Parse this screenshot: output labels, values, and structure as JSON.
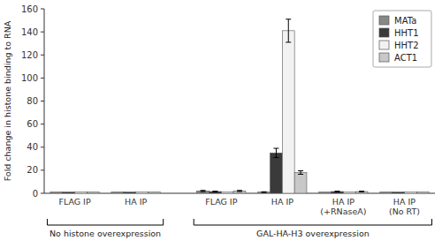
{
  "chart_data": {
    "type": "bar",
    "y_label": "Fold change in histone binding to RNA",
    "categories": [
      "FLAG IP",
      "HA IP",
      "FLAG IP",
      "HA IP",
      "HA IP\n(+RNaseA)",
      "HA IP\n(No RT)"
    ],
    "series": [
      {
        "name": "MATa",
        "color": "#888888",
        "values": [
          1,
          1,
          2,
          1,
          1,
          1
        ],
        "errors": [
          0,
          0,
          0.5,
          0.3,
          0,
          0
        ]
      },
      {
        "name": "HHT1",
        "color": "#3a3a3a",
        "values": [
          1,
          1,
          1.5,
          35,
          1.5,
          1
        ],
        "errors": [
          0,
          0,
          0.3,
          4,
          0.3,
          0
        ]
      },
      {
        "name": "HHT2",
        "color": "#f2f2f2",
        "values": [
          1,
          1,
          1,
          141,
          1,
          1
        ],
        "errors": [
          0,
          0,
          0,
          10,
          0,
          0
        ]
      },
      {
        "name": "ACT1",
        "color": "#c8c8c8",
        "values": [
          1,
          1,
          2,
          18,
          1.5,
          1
        ],
        "errors": [
          0,
          0,
          0.5,
          1.5,
          0.3,
          0
        ]
      }
    ],
    "ylim": [
      0,
      160
    ],
    "yticks": [
      0,
      20,
      40,
      60,
      80,
      100,
      120,
      140,
      160
    ],
    "legend": "upper right",
    "annotations": [
      "No histone overexpression",
      "GAL-HA-H3 overexpression"
    ]
  }
}
